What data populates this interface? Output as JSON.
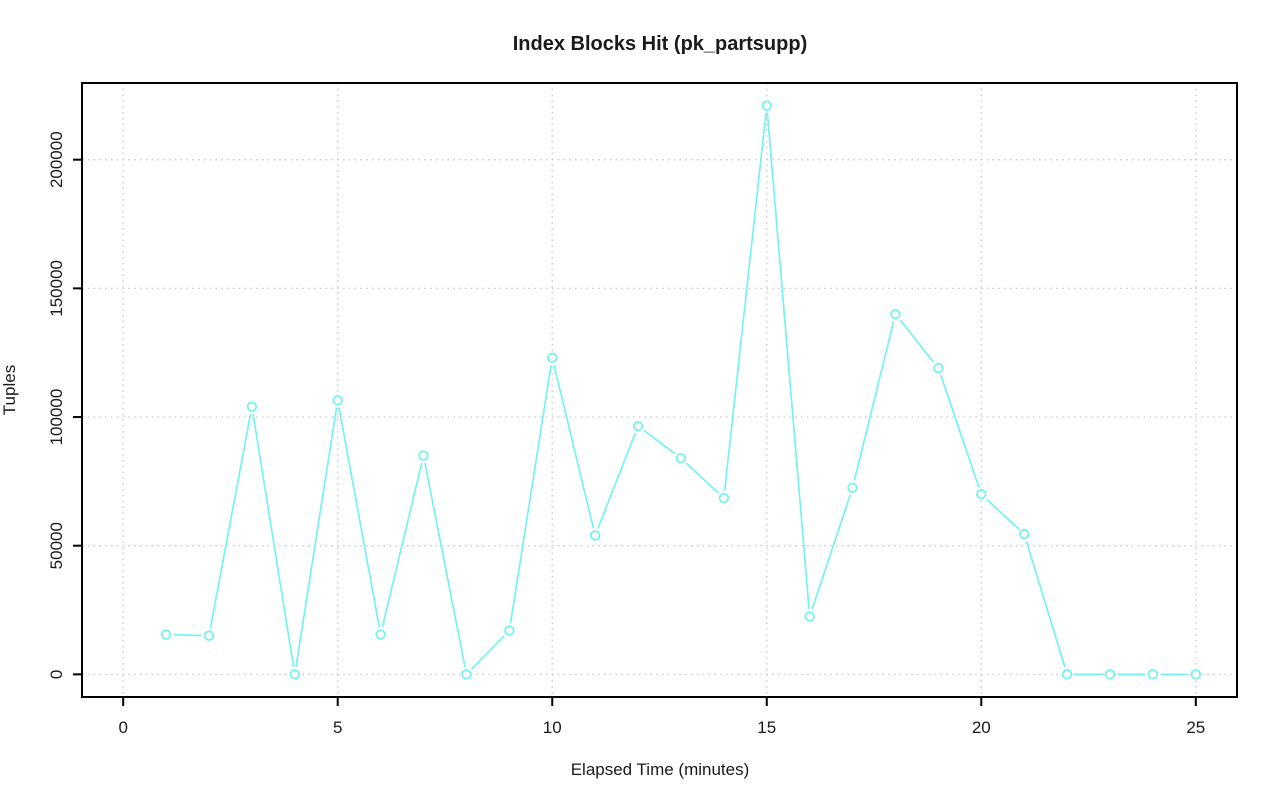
{
  "chart_data": {
    "type": "line",
    "title": "Index Blocks Hit (pk_partsupp)",
    "xlabel": "Elapsed Time (minutes)",
    "ylabel": "Tuples",
    "x": [
      1,
      2,
      3,
      4,
      5,
      6,
      7,
      8,
      9,
      10,
      11,
      12,
      13,
      14,
      15,
      16,
      17,
      18,
      19,
      20,
      21,
      22,
      23,
      24,
      25
    ],
    "series": [
      {
        "name": "index blocks hit",
        "marker": "open-circle",
        "line_style": "solid-with-point-gaps",
        "values": [
          15500,
          15000,
          104000,
          0,
          106500,
          15500,
          85000,
          0,
          17000,
          123000,
          54000,
          96500,
          84000,
          68500,
          221000,
          22500,
          72500,
          140000,
          119000,
          70000,
          54500,
          0,
          0,
          0,
          0
        ]
      }
    ],
    "xticks": [
      0,
      5,
      10,
      15,
      20,
      25
    ],
    "yticks": [
      0,
      50000,
      100000,
      150000,
      200000
    ],
    "xtick_labels": [
      "0",
      "5",
      "10",
      "15",
      "20",
      "25"
    ],
    "ytick_labels": [
      "0",
      "50000",
      "100000",
      "150000",
      "200000"
    ],
    "xlim": [
      -0.96,
      25.96
    ],
    "ylim": [
      -8800,
      229800
    ],
    "grid": "dotted",
    "legend_position": "none",
    "colors": {
      "line": "#76F2F2",
      "marker_fill": "#FFFFFF",
      "grid": "#C9C9C9",
      "axis": "#000000",
      "text": "#1A1A1A",
      "background": "#FFFFFF"
    }
  }
}
